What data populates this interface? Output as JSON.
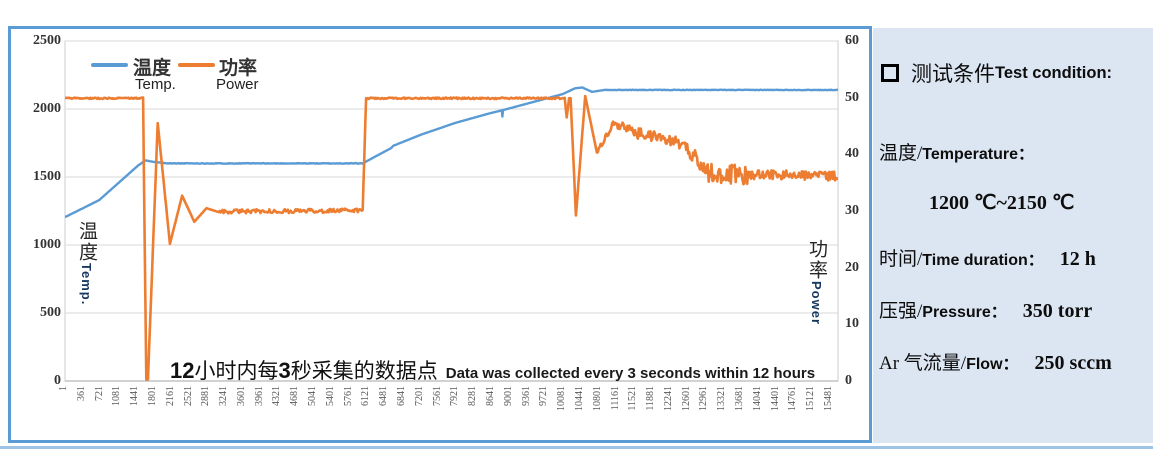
{
  "chart_data": {
    "type": "line",
    "title": "",
    "x_range": [
      1,
      15840
    ],
    "left_ylim": [
      0,
      2500
    ],
    "right_ylim": [
      0,
      60
    ],
    "grid": "horizontal",
    "legend_position": "top-left-inside",
    "legend": [
      {
        "zh": "温度",
        "en": "Temp.",
        "color": "#5B9BD5"
      },
      {
        "zh": "功率",
        "en": "Power",
        "color": "#ED7D31"
      }
    ],
    "left_axis": {
      "label_zh": "温度",
      "label_en": "Temp.",
      "ticks": [
        0,
        500,
        1000,
        1500,
        2000,
        2500
      ]
    },
    "right_axis": {
      "label_zh": "功率",
      "label_en": "Power",
      "ticks": [
        0,
        10,
        20,
        30,
        40,
        50,
        60
      ]
    },
    "x_ticks": [
      1,
      361,
      721,
      1081,
      1441,
      1801,
      2161,
      2521,
      2881,
      3241,
      3601,
      3961,
      4321,
      4681,
      5041,
      5401,
      5761,
      6121,
      6481,
      6841,
      7201,
      7561,
      7921,
      8281,
      8641,
      9001,
      9361,
      9721,
      10081,
      10441,
      10801,
      11161,
      11521,
      11881,
      12241,
      12601,
      12961,
      13321,
      13681,
      14041,
      14401,
      14761,
      15121,
      15481
    ],
    "annotation": {
      "n1": "12",
      "t1": "小时内每",
      "n2": "3",
      "t2": "秒采集的数据点",
      "en": "Data was collected every 3 seconds within 12 hours"
    },
    "series_note": "segments are [x_start, x_end, y_start, y_end, noise_amplitude] approximating the sampled traces",
    "series": [
      {
        "name": "温度 Temp.",
        "axis": "left",
        "color": "#5B9BD5",
        "stroke_width": 2.4,
        "seed": 11,
        "segments": [
          [
            1,
            700,
            1205,
            1330,
            0
          ],
          [
            700,
            1500,
            1330,
            1585,
            0
          ],
          [
            1500,
            1650,
            1585,
            1622,
            0
          ],
          [
            1650,
            1800,
            1622,
            1612,
            0
          ],
          [
            1800,
            2100,
            1612,
            1600,
            0
          ],
          [
            2100,
            6100,
            1600,
            1600,
            2.5
          ],
          [
            6100,
            6450,
            1600,
            1668,
            0
          ],
          [
            6450,
            6680,
            1668,
            1712,
            0
          ],
          [
            6680,
            6730,
            1712,
            1730,
            0
          ],
          [
            6730,
            7300,
            1730,
            1812,
            0
          ],
          [
            7300,
            8000,
            1812,
            1898,
            0
          ],
          [
            8000,
            8700,
            1898,
            1968,
            0
          ],
          [
            8700,
            8950,
            1968,
            1990,
            0
          ],
          [
            8950,
            8962,
            1990,
            1945,
            0
          ],
          [
            8962,
            8975,
            1945,
            1992,
            0
          ],
          [
            8975,
            9600,
            1992,
            2052,
            0
          ],
          [
            9600,
            10200,
            2052,
            2110,
            0
          ],
          [
            10200,
            10450,
            2110,
            2152,
            0
          ],
          [
            10450,
            10600,
            2152,
            2158,
            0
          ],
          [
            10600,
            10800,
            2158,
            2126,
            0
          ],
          [
            10800,
            11050,
            2126,
            2140,
            0
          ],
          [
            11050,
            15840,
            2140,
            2140,
            2
          ]
        ]
      },
      {
        "name": "功率 Power",
        "axis": "right",
        "color": "#ED7D31",
        "stroke_width": 2.6,
        "seed": 77,
        "segments": [
          [
            1,
            1600,
            49.9,
            49.9,
            0.12
          ],
          [
            1600,
            1665,
            49.9,
            0.3,
            0
          ],
          [
            1665,
            1700,
            0.3,
            0.3,
            0
          ],
          [
            1700,
            1900,
            0.3,
            45.5,
            0
          ],
          [
            1900,
            2150,
            45.5,
            24.2,
            0
          ],
          [
            2150,
            2400,
            24.2,
            32.7,
            0
          ],
          [
            2400,
            2650,
            32.7,
            28.1,
            0
          ],
          [
            2650,
            2900,
            28.1,
            30.5,
            0
          ],
          [
            2900,
            3150,
            30.5,
            29.8,
            0
          ],
          [
            3150,
            6100,
            29.9,
            30.1,
            0.35
          ],
          [
            6100,
            6170,
            30,
            49.9,
            0
          ],
          [
            6170,
            10240,
            49.9,
            49.9,
            0.15
          ],
          [
            10240,
            10280,
            49.9,
            46.5,
            0
          ],
          [
            10280,
            10330,
            46.5,
            49.9,
            0
          ],
          [
            10330,
            10360,
            49.9,
            49.9,
            0
          ],
          [
            10360,
            10470,
            49.9,
            29.2,
            0
          ],
          [
            10470,
            10660,
            29.2,
            50.3,
            0
          ],
          [
            10660,
            10900,
            50.3,
            40.3,
            0
          ],
          [
            10900,
            11250,
            40.3,
            45.6,
            0.5
          ],
          [
            11250,
            11700,
            45.6,
            43.8,
            0.9
          ],
          [
            11700,
            12350,
            43.8,
            42.6,
            1.0
          ],
          [
            12350,
            12750,
            42.6,
            41.3,
            1.1
          ],
          [
            12750,
            13150,
            41.3,
            36.8,
            1.3
          ],
          [
            13150,
            14000,
            36.8,
            36.3,
            1.7
          ],
          [
            14000,
            15840,
            36.4,
            36.2,
            0.85
          ]
        ]
      }
    ]
  },
  "panel": {
    "bullet": "□",
    "title_zh": "测试条件",
    "title_en": "Test condition:",
    "row_temperature": {
      "zh": "温度/",
      "en": "Temperature："
    },
    "temperature_value": "1200 ℃~2150 ℃",
    "row_time": {
      "zh": "时间/ ",
      "en": "Time duration：",
      "value": "12 h"
    },
    "row_pressure": {
      "zh": "压强/ ",
      "en": "Pressure：",
      "value": "350 torr"
    },
    "row_flow": {
      "zh": "Ar 气流量/",
      "en": "Flow：",
      "value": "250 sccm"
    }
  }
}
